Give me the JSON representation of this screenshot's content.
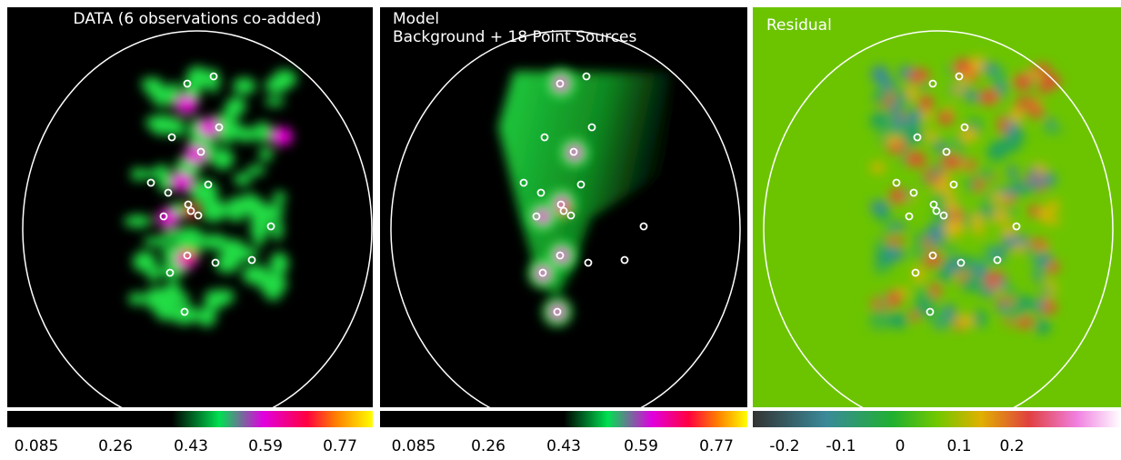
{
  "panels": [
    {
      "title": [
        "DATA (6 observations co-added)"
      ],
      "colorbar_ticks": [
        "0.085",
        "0.26",
        "0.43",
        "0.59",
        "0.77"
      ]
    },
    {
      "title": [
        "Model",
        "Background + 18 Point Sources"
      ],
      "colorbar_ticks": [
        "0.085",
        "0.26",
        "0.43",
        "0.59",
        "0.77"
      ]
    },
    {
      "title": [
        "Residual"
      ],
      "colorbar_ticks": [
        "-0.2",
        "-0.1",
        "0",
        "0.1",
        "0.2"
      ]
    }
  ]
}
